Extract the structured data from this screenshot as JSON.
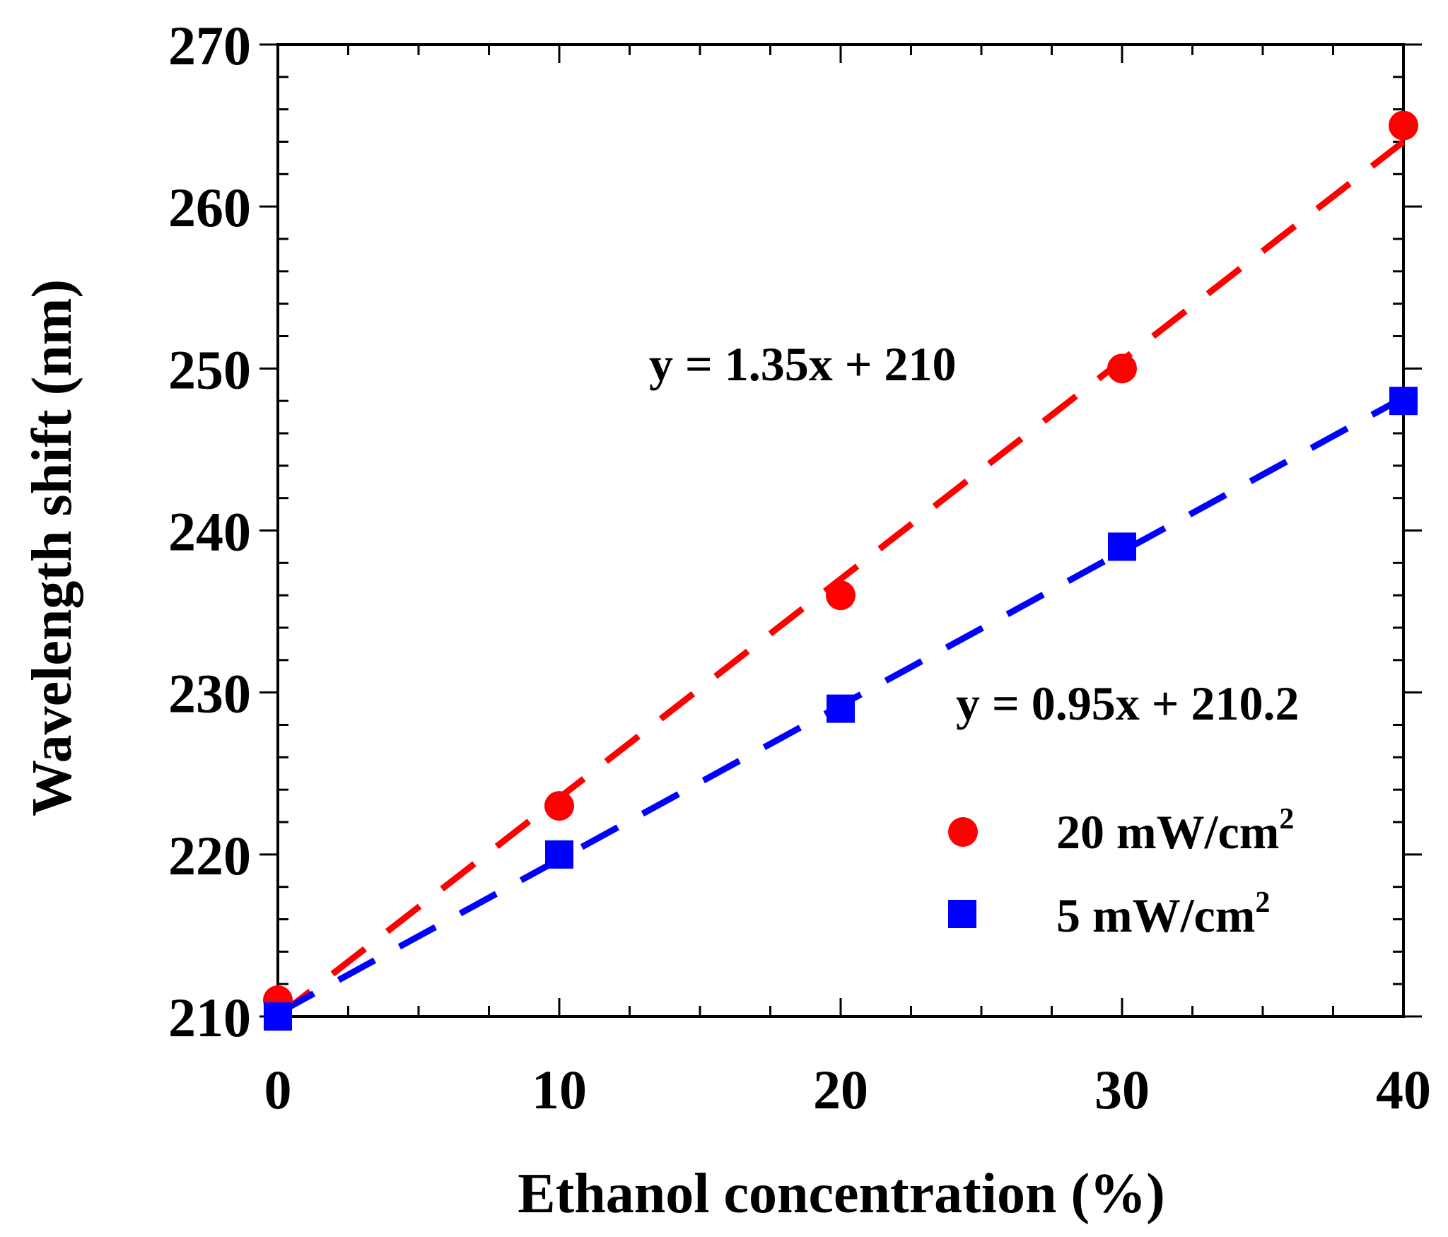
{
  "chart_data": {
    "type": "scatter",
    "title": "",
    "xlabel": "Ethanol concentration  (%)",
    "ylabel": "Wavelength shift  (nm)",
    "xlim": [
      0,
      40
    ],
    "ylim": [
      210,
      270
    ],
    "x_ticks": [
      0,
      10,
      20,
      30,
      40
    ],
    "y_ticks": [
      210,
      220,
      230,
      240,
      250,
      260,
      270
    ],
    "x_minor_step": 2.5,
    "y_minor_step": 2,
    "grid": false,
    "series": [
      {
        "name": "20 mW/cm²",
        "label": "20 mW/cm",
        "label_sup": "2",
        "marker": "circle",
        "color": "#ff0000",
        "x": [
          0,
          10,
          20,
          30,
          40
        ],
        "y": [
          211,
          223,
          236,
          250,
          265
        ],
        "fit": {
          "slope": 1.35,
          "intercept": 210,
          "equation": "y = 1.35x + 210"
        }
      },
      {
        "name": "5 mW/cm²",
        "label": "5 mW/cm",
        "label_sup": "2",
        "marker": "square",
        "color": "#0000ff",
        "x": [
          0,
          10,
          20,
          30,
          40
        ],
        "y": [
          210,
          220,
          229,
          239,
          248
        ],
        "fit": {
          "slope": 0.95,
          "intercept": 210.2,
          "equation": "y = 0.95x + 210.2"
        }
      }
    ],
    "legend_position": "bottom-right"
  }
}
